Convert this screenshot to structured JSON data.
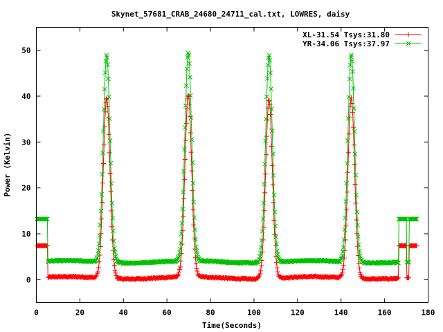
{
  "chart_data": {
    "type": "line",
    "title": "Skynet_57681_CRAB_24680_24711_cal.txt, LOWRES, daisy",
    "xlabel": "Time(Seconds)",
    "ylabel": "Power (Kelvin)",
    "xlim": [
      0,
      180
    ],
    "ylim": [
      -5,
      55
    ],
    "x_ticks": [
      0,
      20,
      40,
      60,
      80,
      100,
      120,
      140,
      160,
      180
    ],
    "y_ticks": [
      0,
      10,
      20,
      30,
      40,
      50
    ],
    "grid": false,
    "legend_position": "top-right",
    "series": [
      {
        "name": "XL-31.54 Tsys:31.80",
        "color": "#ff0000",
        "marker": "plus",
        "baseline": 0.4,
        "cal_level": 7.4,
        "cal_windows": [
          [
            0.3,
            5.2
          ],
          [
            166.5,
            170.0
          ],
          [
            171.3,
            175.0
          ]
        ],
        "cal_mid_level": 0.4,
        "peaks": [
          {
            "t": 32.3,
            "height": 39.7
          },
          {
            "t": 69.8,
            "height": 40.0
          },
          {
            "t": 106.9,
            "height": 39.4
          },
          {
            "t": 144.7,
            "height": 39.7
          }
        ]
      },
      {
        "name": "YR-34.06 Tsys:37.97",
        "color": "#00c000",
        "marker": "x",
        "baseline": 3.9,
        "cal_level": 13.2,
        "cal_windows": [
          [
            0.3,
            5.2
          ],
          [
            166.5,
            170.0
          ],
          [
            171.3,
            175.0
          ]
        ],
        "cal_mid_level": 3.8,
        "peaks": [
          {
            "t": 32.3,
            "height": 49.0
          },
          {
            "t": 69.8,
            "height": 49.2
          },
          {
            "t": 106.9,
            "height": 49.0
          },
          {
            "t": 144.7,
            "height": 49.0
          }
        ]
      }
    ],
    "time_range": [
      0.3,
      175.0
    ],
    "peak_width_sigma": 1.55
  }
}
